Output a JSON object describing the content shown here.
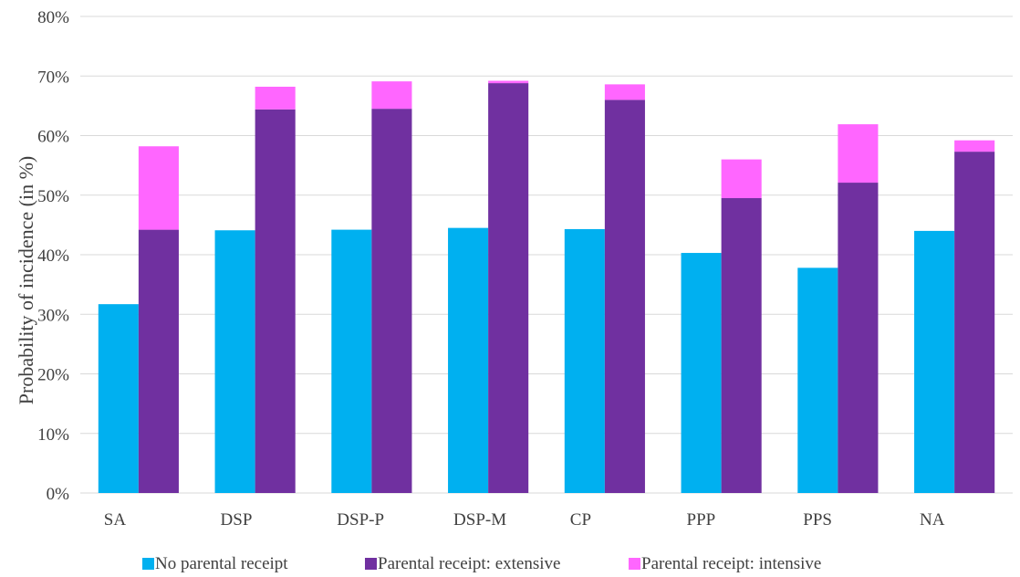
{
  "chart_data": {
    "type": "bar",
    "title": "",
    "xlabel": "",
    "ylabel": "Probability of incidence (in %)",
    "ylim": [
      0,
      80
    ],
    "y_ticks": [
      0,
      10,
      20,
      30,
      40,
      50,
      60,
      70,
      80
    ],
    "y_tick_labels": [
      "0%",
      "10%",
      "20%",
      "30%",
      "40%",
      "50%",
      "60%",
      "70%",
      "80%"
    ],
    "grid": true,
    "legend_position": "bottom",
    "categories": [
      "SA",
      "DSP",
      "DSP-P",
      "DSP-M",
      "CP",
      "PPP",
      "PPS",
      "NA"
    ],
    "series": [
      {
        "name": "No parental receipt",
        "color": "#00B0F0",
        "stack": "a",
        "values": [
          31.7,
          44.1,
          44.2,
          44.5,
          44.3,
          40.3,
          37.8,
          44.0
        ]
      },
      {
        "name": "Parental receipt: extensive",
        "color": "#7030A0",
        "stack": "b",
        "values": [
          44.2,
          64.4,
          64.5,
          68.8,
          66.0,
          49.5,
          52.1,
          57.3
        ]
      },
      {
        "name": "Parental receipt: intensive",
        "color": "#FF66FF",
        "stack": "b",
        "values": [
          14.0,
          3.8,
          4.6,
          0.4,
          2.6,
          6.5,
          9.8,
          1.9
        ]
      }
    ]
  }
}
